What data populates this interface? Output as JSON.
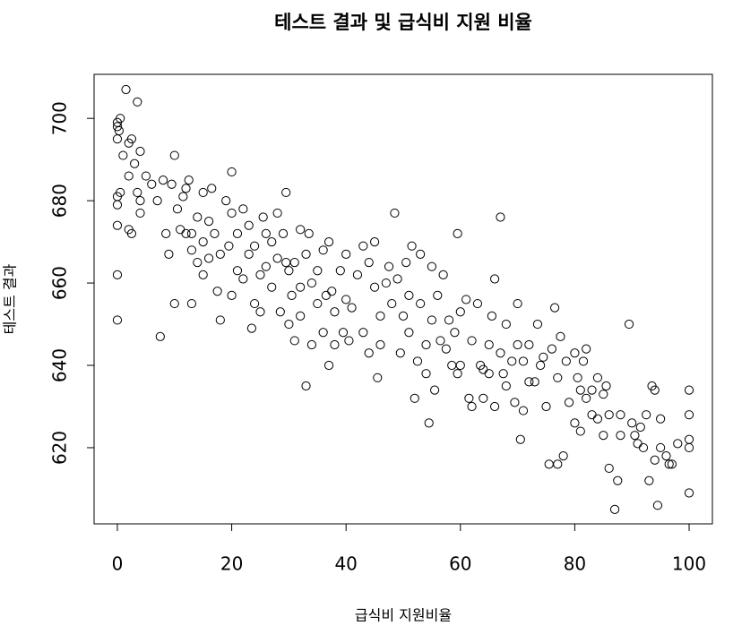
{
  "chart_data": {
    "type": "scatter",
    "title": "테스트 결과 및 급식비 지원 비율",
    "x_label": "급식비 지원비율",
    "y_label": "테스트 결과",
    "xlim": [
      -4.07,
      104.07
    ],
    "ylim": [
      601.5,
      710.7
    ],
    "xticks": [
      0,
      20,
      40,
      60,
      80,
      100
    ],
    "yticks": [
      620,
      640,
      660,
      680,
      700
    ],
    "color": "#000000",
    "x": [
      0,
      0,
      0,
      0.3,
      0.5,
      1,
      1.5,
      2,
      2,
      2.5,
      3,
      3.5,
      4,
      0,
      0.5,
      0,
      0,
      0,
      0,
      2,
      2.5,
      3.5,
      4,
      4,
      5,
      6,
      7,
      7.5,
      8,
      8.5,
      9,
      9.5,
      10,
      10,
      10.5,
      11,
      11.5,
      12,
      12,
      12.5,
      13,
      13,
      13,
      14,
      14,
      15,
      15,
      15,
      16,
      16,
      16.5,
      17,
      17.5,
      18,
      18,
      19,
      19.5,
      20,
      20,
      20,
      21,
      21,
      22,
      22,
      23,
      23,
      23.5,
      24,
      24,
      25,
      25,
      25.5,
      26,
      26,
      27,
      27,
      28,
      28,
      28.5,
      29,
      29.5,
      29.5,
      30,
      30,
      30.5,
      31,
      31,
      32,
      32,
      32,
      33,
      33,
      33.5,
      34,
      34,
      35,
      35,
      36,
      36,
      36.5,
      37,
      37,
      37.5,
      38,
      38,
      39,
      39.5,
      40,
      40,
      40.5,
      41,
      42,
      43,
      43,
      44,
      44,
      45,
      45,
      45.5,
      46,
      46,
      47,
      47.5,
      48,
      48.5,
      49,
      49.5,
      50,
      50.5,
      51,
      51,
      51.5,
      52,
      52.5,
      53,
      53,
      54,
      54,
      54.5,
      55,
      55,
      55.5,
      56,
      56.5,
      57,
      57.5,
      58,
      58.5,
      59,
      59.5,
      59.5,
      60,
      60,
      61,
      61.5,
      62,
      62,
      63,
      63.5,
      64,
      64,
      65,
      65,
      65.5,
      66,
      66,
      67,
      67,
      67.5,
      68,
      68,
      69,
      69.5,
      70,
      70,
      70.5,
      71,
      71,
      72,
      72,
      73,
      73.5,
      74,
      74.5,
      75,
      75.5,
      76,
      76.5,
      77,
      77,
      77.5,
      78,
      78.5,
      79,
      80,
      80,
      80.5,
      81,
      81,
      81.5,
      82,
      82,
      83,
      83,
      84,
      84,
      85,
      85,
      85.5,
      86,
      86,
      87,
      87.5,
      88,
      88,
      89.5,
      90,
      90.5,
      91,
      91.5,
      92,
      92.5,
      93,
      93.5,
      94,
      94,
      94.5,
      95,
      95,
      96,
      96.5,
      97,
      98,
      100,
      100,
      100,
      100,
      100
    ],
    "y": [
      699,
      698,
      695,
      697,
      700,
      691,
      707,
      686,
      694,
      695,
      689,
      704,
      692,
      681,
      682,
      679,
      674,
      662,
      651,
      673,
      672,
      682,
      677,
      680,
      686,
      684,
      680,
      647,
      685,
      672,
      667,
      684,
      691,
      655,
      678,
      673,
      681,
      672,
      683,
      685,
      668,
      672,
      655,
      676,
      665,
      682,
      670,
      662,
      675,
      666,
      683,
      672,
      658,
      651,
      667,
      680,
      669,
      687,
      657,
      677,
      663,
      672,
      678,
      661,
      674,
      667,
      649,
      655,
      669,
      662,
      653,
      676,
      664,
      672,
      670,
      659,
      677,
      666,
      653,
      672,
      682,
      665,
      650,
      663,
      657,
      665,
      646,
      659,
      652,
      673,
      635,
      667,
      672,
      660,
      645,
      663,
      655,
      668,
      648,
      657,
      640,
      670,
      658,
      653,
      645,
      663,
      648,
      667,
      656,
      646,
      654,
      662,
      669,
      648,
      643,
      665,
      670,
      659,
      637,
      652,
      645,
      660,
      664,
      655,
      677,
      661,
      643,
      652,
      665,
      657,
      648,
      669,
      632,
      641,
      655,
      667,
      638,
      645,
      626,
      651,
      664,
      634,
      657,
      646,
      662,
      644,
      651,
      640,
      648,
      672,
      638,
      653,
      640,
      656,
      632,
      630,
      646,
      655,
      640,
      639,
      632,
      638,
      645,
      652,
      661,
      630,
      676,
      643,
      638,
      635,
      650,
      641,
      631,
      655,
      645,
      622,
      629,
      641,
      645,
      636,
      636,
      650,
      640,
      642,
      630,
      616,
      644,
      654,
      637,
      616,
      647,
      618,
      641,
      631,
      643,
      626,
      637,
      634,
      624,
      641,
      632,
      644,
      628,
      634,
      637,
      627,
      633,
      623,
      635,
      615,
      628,
      605,
      612,
      628,
      623,
      650,
      626,
      623,
      621,
      625,
      620,
      628,
      612,
      635,
      617,
      634,
      606,
      627,
      620,
      618,
      616,
      616,
      621,
      634,
      628,
      622,
      620,
      609
    ]
  }
}
